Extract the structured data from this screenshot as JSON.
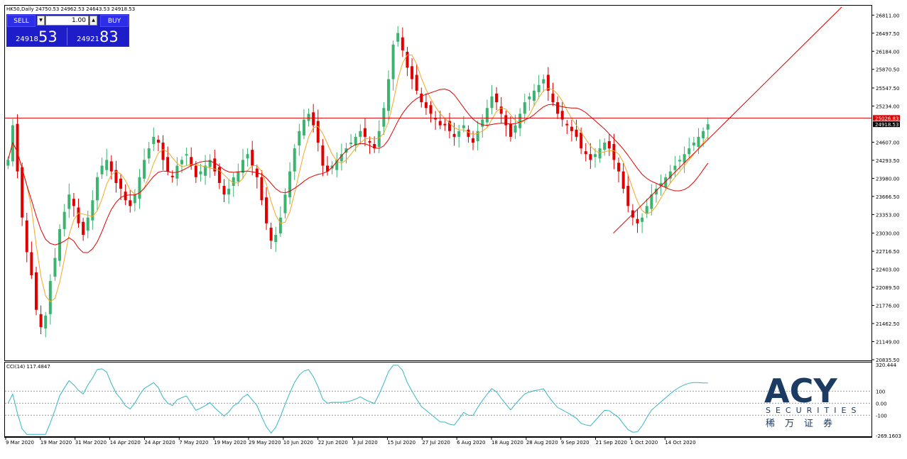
{
  "header": {
    "symbol_line": "HK50,Daily  24750.53 24962.53 24643.53 24918.53"
  },
  "trade_panel": {
    "sell_label": "SELL",
    "buy_label": "BUY",
    "lot_value": "1.00",
    "sell_price_small": "24918",
    "sell_price_big": "53",
    "buy_price_small": "24921",
    "buy_price_big": "83"
  },
  "price_markers": {
    "horizontal_level": "25026.83",
    "current_price": "24918.53"
  },
  "cci_label": "CCI(14) 117.4847",
  "logo": {
    "main": "ACY",
    "sub": "SECURITIES",
    "cn": "稀万证券"
  },
  "colors": {
    "bull": "#3cb371",
    "bear": "#e00000",
    "ma_fast": "#f5a623",
    "ma_slow": "#e00000",
    "cci_line": "#35b6c4",
    "hline": "#e00000",
    "trendline": "#e00000"
  },
  "chart_data": [
    {
      "type": "candlestick",
      "title": "HK50,Daily",
      "y_ticks": [
        "26811.00",
        "26497.50",
        "26184.00",
        "25870.50",
        "25547.50",
        "25234.00",
        "24607.00",
        "24293.50",
        "23980.00",
        "23666.50",
        "23353.00",
        "23030.00",
        "22716.50",
        "22403.00",
        "22089.50",
        "21776.00",
        "21462.50",
        "21149.00",
        "20835.50"
      ],
      "ylim": [
        20835.5,
        26950
      ],
      "x_ticks": [
        "9 Mar 2020",
        "19 Mar 2020",
        "31 Mar 2020",
        "14 Apr 2020",
        "24 Apr 2020",
        "7 May 2020",
        "19 May 2020",
        "29 May 2020",
        "10 Jun 2020",
        "22 Jun 2020",
        "3 Jul 2020",
        "15 Jul 2020",
        "27 Jul 2020",
        "6 Aug 2020",
        "18 Aug 2020",
        "28 Aug 2020",
        "9 Sep 2020",
        "21 Sep 2020",
        "1 Oct 2020",
        "14 Oct 2020"
      ],
      "close_series": [
        24300,
        24900,
        24100,
        23300,
        22700,
        22300,
        21700,
        21400,
        21600,
        22200,
        22600,
        23100,
        23400,
        23700,
        23500,
        23200,
        23000,
        23300,
        23600,
        24000,
        24200,
        24300,
        24100,
        23900,
        23800,
        23600,
        23500,
        23700,
        24000,
        24300,
        24500,
        24700,
        24600,
        24300,
        24100,
        24000,
        24200,
        24300,
        24400,
        24200,
        24000,
        24100,
        24200,
        24300,
        24100,
        23900,
        23700,
        23800,
        24000,
        24100,
        24300,
        24400,
        24200,
        24000,
        23600,
        23200,
        22900,
        23000,
        23300,
        23700,
        24100,
        24500,
        24800,
        25000,
        25100,
        24900,
        24600,
        24200,
        24100,
        24200,
        24300,
        24400,
        24500,
        24600,
        24700,
        24800,
        24700,
        24600,
        24500,
        24800,
        25200,
        25700,
        26300,
        26500,
        26200,
        25900,
        25700,
        25500,
        25300,
        25200,
        25100,
        25000,
        24900,
        24900,
        24800,
        24700,
        24800,
        24900,
        24700,
        24600,
        24800,
        25000,
        25200,
        25400,
        25300,
        25100,
        24900,
        24700,
        24900,
        25100,
        25300,
        25400,
        25500,
        25600,
        25700,
        25500,
        25300,
        25100,
        25000,
        24900,
        24800,
        24700,
        24500,
        24400,
        24300,
        24400,
        24500,
        24600,
        24500,
        24300,
        24100,
        23800,
        23500,
        23300,
        23200,
        23300,
        23500,
        23700,
        23800,
        23900,
        24000,
        24100,
        24200,
        24300,
        24400,
        24500,
        24600,
        24700,
        24800,
        24918.53
      ],
      "ma_fast_note": "fast moving average (orange)",
      "ma_slow_note": "slow moving average (red)",
      "horizontal_line": 25026.83,
      "trendline": {
        "from": [
          "21 Sep 2020",
          23030
        ],
        "to": [
          "end",
          26950
        ]
      }
    },
    {
      "type": "line",
      "title": "CCI(14) 117.4847",
      "y_ticks": [
        "320.444",
        "100",
        "0.00",
        "-100",
        "-269.1603"
      ],
      "ylim": [
        -269.1603,
        320.444
      ],
      "levels": [
        100,
        0,
        -100
      ]
    }
  ]
}
